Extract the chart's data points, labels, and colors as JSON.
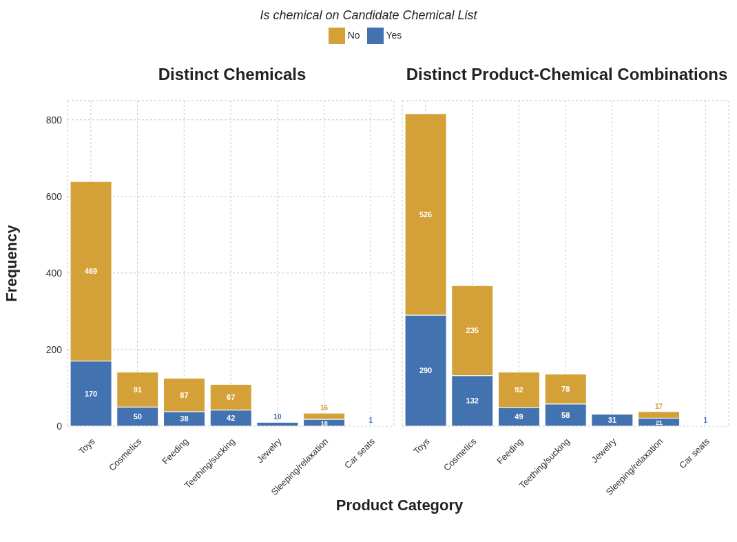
{
  "chart_data": [
    {
      "type": "bar",
      "title": "Distinct Chemicals",
      "ylabel": "Frequency",
      "xlabel": "Product Category",
      "legend_title": "Is chemical on Candidate Chemical List",
      "legend": "top",
      "stacked": true,
      "data_labels": true,
      "grid": true,
      "ylim": [
        0,
        850
      ],
      "yticks": [
        0,
        200,
        400,
        600,
        800
      ],
      "categories": [
        "Toys",
        "Cosmetics",
        "Feeding",
        "Teething/sucking",
        "Jewelry",
        "Sleeping/relaxation",
        "Car seats"
      ],
      "series": [
        {
          "name": "Yes",
          "color": "#4272af",
          "values": [
            170,
            50,
            38,
            42,
            10,
            18,
            1
          ]
        },
        {
          "name": "No",
          "color": "#d4a038",
          "values": [
            469,
            91,
            87,
            67,
            null,
            16,
            null
          ]
        }
      ]
    },
    {
      "type": "bar",
      "title": "Distinct Product-Chemical Combinations",
      "stacked": true,
      "data_labels": true,
      "grid": true,
      "tick_labels": "x",
      "ylim": [
        0,
        850
      ],
      "yticks": [
        0,
        200,
        400,
        600,
        800
      ],
      "categories": [
        "Toys",
        "Cosmetics",
        "Feeding",
        "Teething/sucking",
        "Jewelry",
        "Sleeping/relaxation",
        "Car seats"
      ],
      "series": [
        {
          "color": "#4272af",
          "values": [
            290,
            132,
            49,
            58,
            31,
            21,
            1
          ]
        },
        {
          "color": "#d4a038",
          "values": [
            526,
            235,
            92,
            78,
            null,
            17,
            null
          ]
        }
      ]
    }
  ]
}
